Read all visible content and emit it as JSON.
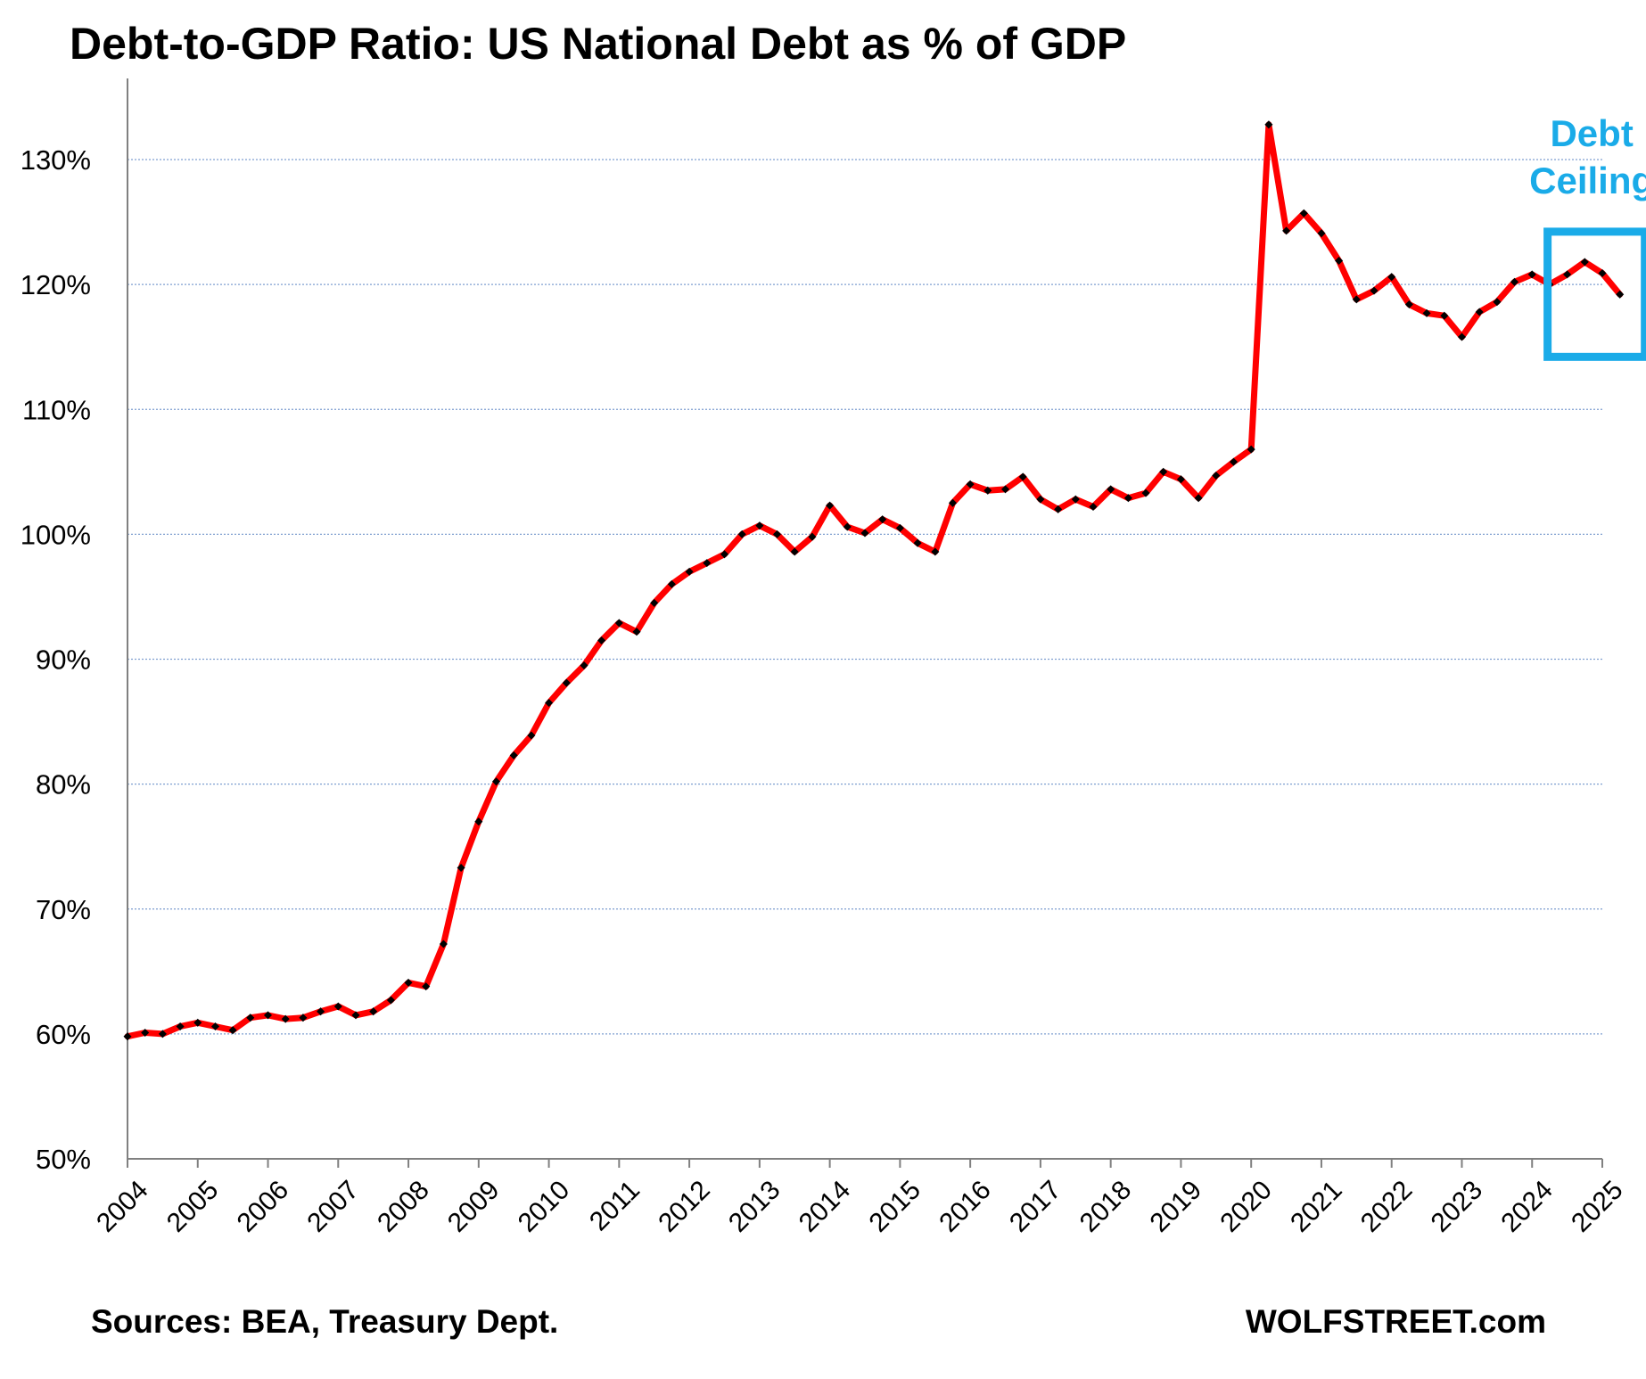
{
  "chart_data": {
    "type": "line",
    "title": "Debt-to-GDP Ratio: US National Debt as % of GDP",
    "xlabel": "",
    "ylabel": "",
    "ylim": [
      50,
      130
    ],
    "yticks": [
      "50%",
      "60%",
      "70%",
      "80%",
      "90%",
      "100%",
      "110%",
      "120%",
      "130%"
    ],
    "xticks": [
      "2004",
      "2005",
      "2006",
      "2007",
      "2008",
      "2009",
      "2010",
      "2011",
      "2012",
      "2013",
      "2014",
      "2015",
      "2016",
      "2017",
      "2018",
      "2019",
      "2020",
      "2021",
      "2022",
      "2023",
      "2024",
      "2025"
    ],
    "grid": true,
    "frequency": "quarterly",
    "series": [
      {
        "values": [
          59.8,
          60.1,
          60.0,
          60.6,
          60.9,
          60.6,
          60.3,
          61.3,
          61.5,
          61.2,
          61.3,
          61.8,
          62.2,
          61.5,
          61.8,
          62.7,
          64.1,
          63.8,
          67.2,
          73.3,
          77.0,
          80.2,
          82.3,
          83.9,
          86.5,
          88.1,
          89.5,
          91.5,
          92.9,
          92.2,
          94.5,
          96.0,
          97.0,
          97.7,
          98.4,
          100.0,
          100.7,
          100.0,
          98.6,
          99.8,
          102.3,
          100.6,
          100.1,
          101.2,
          100.5,
          99.3,
          98.6,
          102.5,
          104.0,
          103.5,
          103.6,
          104.6,
          102.8,
          102.0,
          102.8,
          102.2,
          103.6,
          102.9,
          103.3,
          105.0,
          104.4,
          102.9,
          104.7,
          105.8,
          106.8,
          132.8,
          124.3,
          125.7,
          124.1,
          121.9,
          118.8,
          119.5,
          120.6,
          118.4,
          117.7,
          117.5,
          115.8,
          117.8,
          118.6,
          120.2,
          120.8,
          120.0,
          120.8,
          121.8,
          120.9,
          119.2
        ]
      }
    ],
    "annotations": [
      {
        "text_lines": [
          "Debt",
          "Ceiling"
        ],
        "marks_last_points": 4
      }
    ]
  },
  "colors": {
    "line": "#ff0000",
    "markers": "#000000",
    "grid": "#7f9fd0",
    "annotation": "#1aabe8",
    "axis": "#808080"
  },
  "footer": {
    "source": "Sources: BEA, Treasury Dept.",
    "brand": "WOLFSTREET.com"
  }
}
